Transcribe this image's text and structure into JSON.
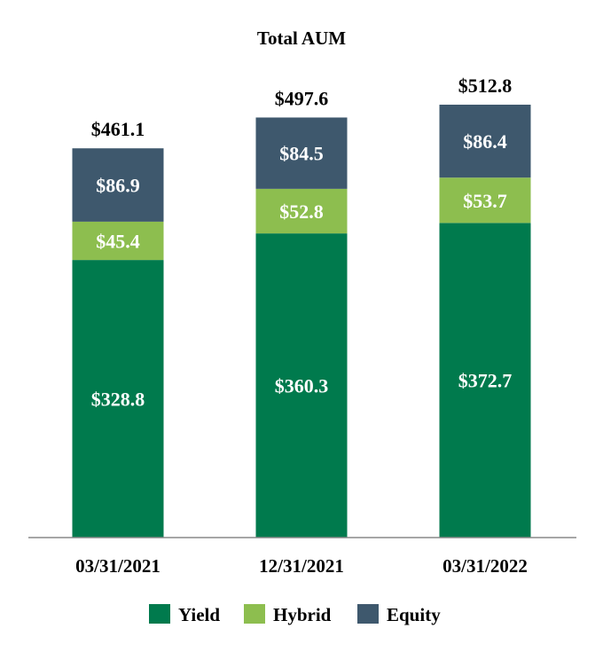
{
  "chart_data": {
    "type": "bar",
    "stacked": true,
    "title": "Total AUM",
    "xlabel": "",
    "ylabel": "",
    "categories": [
      "03/31/2021",
      "12/31/2021",
      "03/31/2022"
    ],
    "series": [
      {
        "name": "Yield",
        "values": [
          328.8,
          360.3,
          372.7
        ],
        "labels": [
          "$328.8",
          "$360.3",
          "$372.7"
        ],
        "color": "#007A4D"
      },
      {
        "name": "Hybrid",
        "values": [
          45.4,
          52.8,
          53.7
        ],
        "labels": [
          "$45.4",
          "$52.8",
          "$53.7"
        ],
        "color": "#8DBE4F"
      },
      {
        "name": "Equity",
        "values": [
          86.9,
          84.5,
          86.4
        ],
        "labels": [
          "$86.9",
          "$84.5",
          "$86.4"
        ],
        "color": "#3E586D"
      }
    ],
    "totals": [
      "$461.1",
      "$497.6",
      "$512.8"
    ],
    "ylim": [
      0,
      520
    ],
    "grid": false,
    "legend": "bottom",
    "colors": {
      "inner_label": "#ffffff",
      "text": "#000000",
      "axis": "#888888"
    }
  }
}
